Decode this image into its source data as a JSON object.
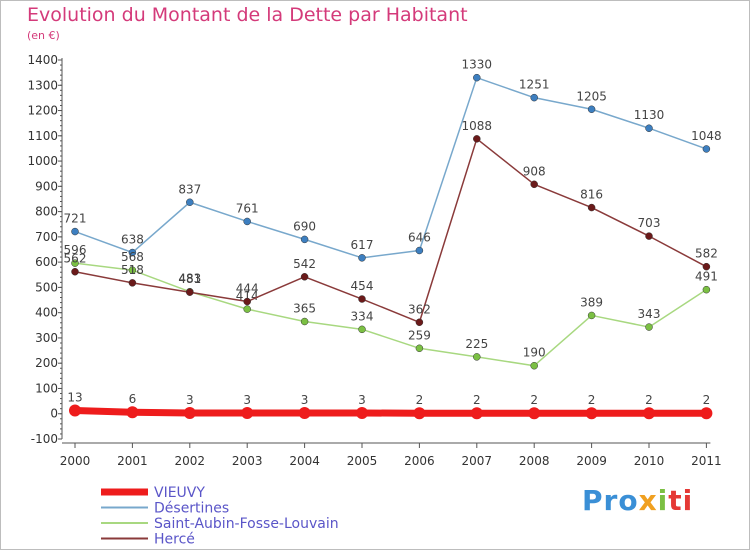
{
  "title": "Evolution du Montant de la Dette par Habitant",
  "subtitle": "(en €)",
  "logo": {
    "part1": "Pro",
    "part2": "x",
    "part3": "i",
    "part4": "ti"
  },
  "colors": {
    "title": "#d43a7a",
    "legend_text": "#5a55c8",
    "axis": "#555555"
  },
  "chart_data": {
    "type": "line",
    "x": [
      "2000",
      "2001",
      "2002",
      "2003",
      "2004",
      "2005",
      "2006",
      "2007",
      "2008",
      "2009",
      "2010",
      "2011"
    ],
    "ylim": [
      -100,
      1400
    ],
    "yticks": [
      -100,
      0,
      100,
      200,
      300,
      400,
      500,
      600,
      700,
      800,
      900,
      1000,
      1100,
      1200,
      1300,
      1400
    ],
    "grid": false,
    "legend_position": "bottom-left",
    "series": [
      {
        "name": "VIEUVY",
        "color": "#ee1c1c",
        "marker": "#ee1c1c",
        "width": 7,
        "values": [
          13,
          6,
          3,
          3,
          3,
          3,
          2,
          2,
          2,
          2,
          2,
          2
        ],
        "labels": [
          "13",
          "6",
          "3",
          "3",
          "3",
          "3",
          "2",
          "2",
          "2",
          "2",
          "2",
          "2"
        ]
      },
      {
        "name": "Désertines",
        "color": "#78a8cc",
        "marker": "#3d7fc0",
        "width": 1.5,
        "values": [
          721,
          638,
          837,
          761,
          690,
          617,
          646,
          1330,
          1251,
          1205,
          1130,
          1048
        ],
        "labels": [
          "721",
          "638",
          "837",
          "761",
          "690",
          "617",
          "646",
          "1330",
          "1251",
          "1205",
          "1130",
          "1048"
        ]
      },
      {
        "name": "Saint-Aubin-Fosse-Louvain",
        "color": "#a8d880",
        "marker": "#7bc043",
        "width": 1.5,
        "values": [
          596,
          568,
          483,
          414,
          365,
          334,
          259,
          225,
          190,
          389,
          343,
          491
        ],
        "labels": [
          "596",
          "568",
          "483",
          "414",
          "365",
          "334",
          "259",
          "225",
          "190",
          "389",
          "343",
          "491"
        ]
      },
      {
        "name": "Hercé",
        "color": "#8a3a3a",
        "marker": "#6b1a1a",
        "width": 1.5,
        "values": [
          562,
          518,
          481,
          444,
          542,
          454,
          362,
          1088,
          908,
          816,
          703,
          582
        ],
        "labels": [
          "562",
          "518",
          "481",
          "444",
          "542",
          "454",
          "362",
          "1088",
          "908",
          "816",
          "703",
          "582"
        ]
      }
    ]
  }
}
